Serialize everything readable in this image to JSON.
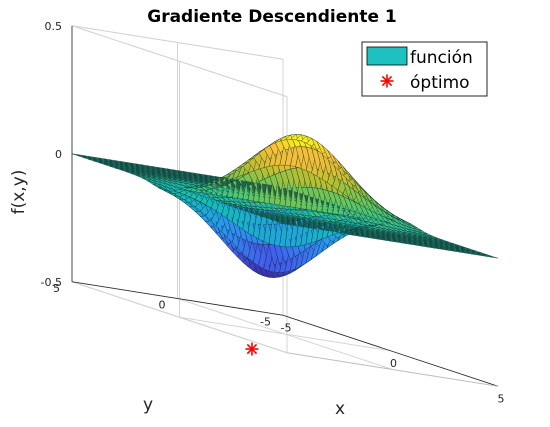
{
  "chart_data": {
    "type": "surface",
    "title": "Gradiente Descendiente 1",
    "xlabel": "x",
    "ylabel": "y",
    "zlabel": "f(x,y)",
    "xlim": [
      -5,
      5
    ],
    "ylim": [
      -5,
      5
    ],
    "zlim": [
      -0.5,
      0.5
    ],
    "x_ticks": [
      "-5",
      "0",
      "5"
    ],
    "y_ticks": [
      "-5",
      "0",
      "5"
    ],
    "z_ticks": [
      "-0.5",
      "0",
      "0.5"
    ],
    "grid": true,
    "legend": {
      "location": "top-right",
      "entries": [
        {
          "label": "función",
          "kind": "patch",
          "color": "#1fc0c0"
        },
        {
          "label": "óptimo",
          "kind": "marker",
          "marker": "*",
          "color": "#ff0000"
        }
      ]
    },
    "surface": {
      "grid_points": 41,
      "peak": {
        "x": 0.7,
        "y": 0,
        "z": 0.43
      },
      "min": {
        "x": -0.7,
        "y": 0,
        "z": -0.43
      }
    },
    "optimum": {
      "x": -0.7,
      "y": 0,
      "z": -0.43
    },
    "colormap": "parula"
  }
}
